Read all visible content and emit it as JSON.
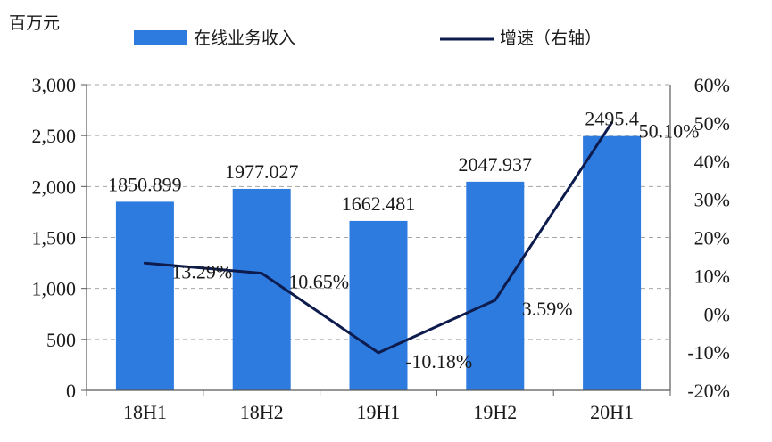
{
  "chart_data": {
    "type": "bar",
    "categories": [
      "18H1",
      "18H2",
      "19H1",
      "19H2",
      "20H1"
    ],
    "left_axis_unit": "百万元",
    "series": [
      {
        "name": "在线业务收入",
        "type": "bar",
        "axis": "left",
        "values": [
          1850.899,
          1977.027,
          1662.481,
          2047.937,
          2495.4
        ],
        "labels": [
          "1850.899",
          "1977.027",
          "1662.481",
          "2047.937",
          "2495.4"
        ]
      },
      {
        "name": "增速（右轴）",
        "type": "line",
        "axis": "right",
        "values": [
          13.29,
          10.65,
          -10.18,
          3.59,
          50.1
        ],
        "labels": [
          "13.29%",
          "10.65%",
          "-10.18%",
          "3.59%",
          "50.10%"
        ]
      }
    ],
    "y_left": {
      "min": 0,
      "max": 3000,
      "ticks": [
        0,
        500,
        1000,
        1500,
        2000,
        2500,
        3000
      ],
      "tick_labels": [
        "0",
        "500",
        "1,000",
        "1,500",
        "2,000",
        "2,500",
        "3,000"
      ]
    },
    "y_right": {
      "min": -20,
      "max": 60,
      "ticks": [
        -20,
        -10,
        0,
        10,
        20,
        30,
        40,
        50,
        60
      ],
      "tick_labels": [
        "-20%",
        "-10%",
        "0%",
        "10%",
        "20%",
        "30%",
        "40%",
        "50%",
        "60%"
      ]
    },
    "grid": "horizontal dashed",
    "legend_position": "top",
    "colors": {
      "bar": "#2E7BE0",
      "line": "#0D1B4D",
      "grid": "#A6A6A6",
      "axis": "#595959",
      "text": "#1A1A1A"
    }
  }
}
